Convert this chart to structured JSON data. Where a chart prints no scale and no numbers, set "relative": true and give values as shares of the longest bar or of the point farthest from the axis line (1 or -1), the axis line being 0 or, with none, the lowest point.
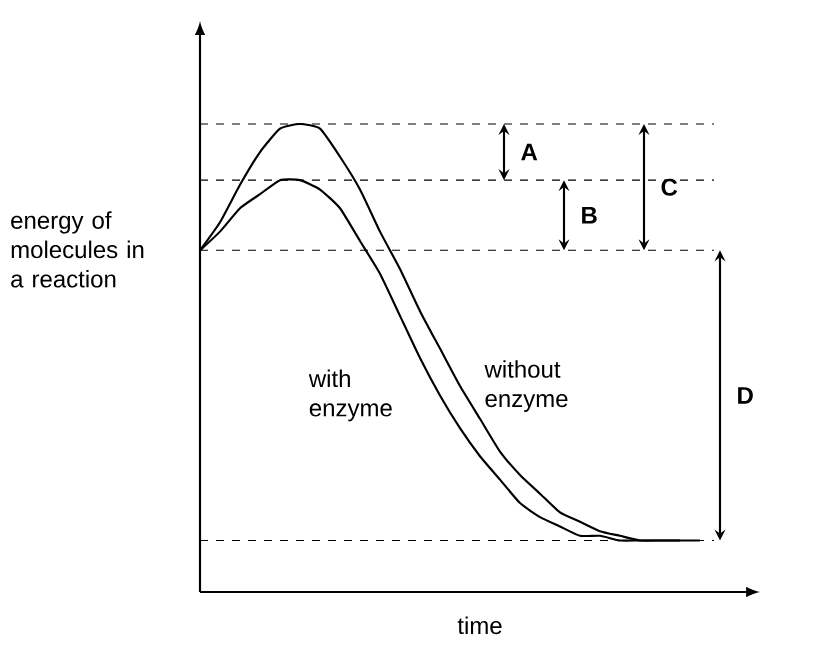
{
  "chart_data": {
    "type": "line",
    "relative": true,
    "xlabel": "time",
    "ylabel": "energy of molecules in a reaction",
    "legend": false,
    "categories": [
      null,
      null,
      null,
      null,
      null,
      null,
      null,
      null,
      null,
      null,
      null,
      null,
      null,
      null,
      null,
      null,
      null,
      null,
      null,
      null,
      null,
      null,
      null,
      null,
      null,
      null
    ],
    "series": [
      {
        "name": "without enzyme",
        "color": "#000000",
        "values": [
          0.73,
          0.79,
          0.87,
          0.94,
          0.99,
          1,
          0.99,
          0.93,
          0.86,
          0.77,
          0.69,
          0.6,
          0.52,
          0.44,
          0.37,
          0.3,
          0.25,
          0.21,
          0.17,
          0.15,
          0.13,
          0.12,
          0.11,
          0.11,
          0.11,
          0.11
        ]
      },
      {
        "name": "with enzyme",
        "color": "#000000",
        "values": [
          0.73,
          0.77,
          0.82,
          0.85,
          0.88,
          0.88,
          0.86,
          0.82,
          0.75,
          0.68,
          0.59,
          0.5,
          0.42,
          0.35,
          0.29,
          0.24,
          0.19,
          0.16,
          0.14,
          0.12,
          0.12,
          0.11,
          0.11,
          0.11,
          0.11,
          null
        ]
      }
    ],
    "ref_lines": [
      {
        "axis": "y",
        "value": 1,
        "line_style": "dashed",
        "color": "#000000"
      },
      {
        "axis": "y",
        "value": 0.88,
        "line_style": "dashed",
        "color": "#000000"
      },
      {
        "axis": "y",
        "value": 0.73,
        "line_style": "dashed",
        "color": "#000000"
      },
      {
        "axis": "y",
        "value": 0.11,
        "line_style": "dashed",
        "color": "#000000"
      }
    ],
    "annotations": [
      "A",
      "B",
      "C",
      "D"
    ]
  }
}
